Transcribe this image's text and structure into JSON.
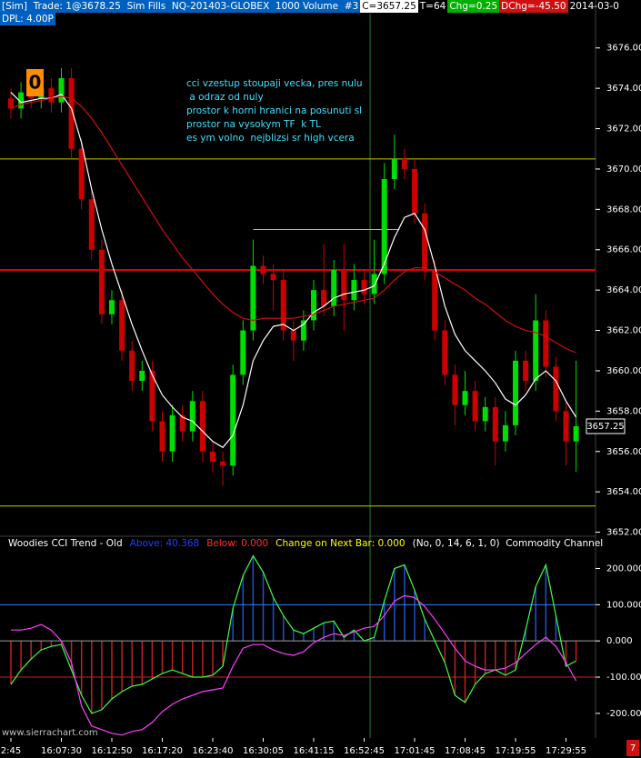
{
  "header": {
    "trade": "[Sim]  Trade: 1@3678.25  Sim Fills  NQ-201403-GLOBEX  1000 Volume  #3",
    "close": "C=3657.25",
    "ticks": "T=64",
    "chg": "Chg=0.25",
    "dchg": "DChg=-45.50",
    "date": "2014-03-0",
    "dpl": "DPL: 4.00P"
  },
  "watermark": "www.sierrachart.com",
  "badge": "7",
  "chart_data": [
    {
      "type": "candlestick",
      "marker_label": "0",
      "annotation": [
        "cci vzestup stoupaji vecka, pres nulu",
        " a odraz od nuly",
        "prostor k horni hranici na posunuti sl",
        "prostor na vysokym TF  k TL",
        "es ym volno  nejblizsi sr high vcera"
      ],
      "categories": [
        "2:45",
        null,
        null,
        null,
        null,
        "16:07:30",
        null,
        null,
        null,
        null,
        "16:12:50",
        null,
        null,
        null,
        null,
        "16:17:20",
        null,
        null,
        null,
        null,
        "16:23:40",
        null,
        null,
        null,
        null,
        "16:30:05",
        null,
        null,
        null,
        null,
        "16:41:15",
        null,
        null,
        null,
        null,
        "16:52:45",
        null,
        null,
        null,
        null,
        "17:01:45",
        null,
        null,
        null,
        null,
        "17:08:45",
        null,
        null,
        null,
        null,
        "17:19:55",
        null,
        null,
        null,
        null,
        "17:29:55",
        null
      ],
      "open": [
        3673.5,
        3673.0,
        3673.8,
        3673.5,
        3674.0,
        3673.3,
        3674.5,
        3671.0,
        3668.5,
        3666.0,
        3662.8,
        3663.5,
        3661.0,
        3659.5,
        3660.0,
        3657.5,
        3656.0,
        3657.8,
        3657.0,
        3658.5,
        3656.0,
        3655.5,
        3655.3,
        3659.8,
        3662.0,
        3665.2,
        3664.8,
        3664.5,
        3662.0,
        3661.5,
        3662.5,
        3664.0,
        3663.2,
        3665.0,
        3663.5,
        3664.5,
        3663.8,
        3664.8,
        3669.5,
        3670.5,
        3670.0,
        3667.8,
        3665.0,
        3662.0,
        3659.8,
        3658.3,
        3659.0,
        3657.5,
        3658.2,
        3656.5,
        3657.3,
        3660.5,
        3659.5,
        3662.5,
        3660.2,
        3658.0,
        3656.5
      ],
      "high": [
        3674.0,
        3674.3,
        3674.3,
        3674.5,
        3674.5,
        3675.0,
        3675.0,
        3671.5,
        3669.0,
        3666.5,
        3664.0,
        3664.0,
        3661.5,
        3660.5,
        3660.5,
        3658.0,
        3658.3,
        3658.3,
        3659.0,
        3659.0,
        3656.5,
        3656.0,
        3660.3,
        3662.5,
        3666.5,
        3665.7,
        3665.3,
        3665.0,
        3662.5,
        3663.0,
        3664.5,
        3666.3,
        3665.5,
        3666.3,
        3665.3,
        3665.0,
        3666.5,
        3670.3,
        3671.7,
        3671.0,
        3670.5,
        3668.3,
        3665.5,
        3662.5,
        3660.3,
        3660.0,
        3659.5,
        3658.7,
        3658.7,
        3658.0,
        3661.0,
        3661.0,
        3663.8,
        3663.0,
        3660.7,
        3658.5,
        3660.5
      ],
      "low": [
        3672.5,
        3672.5,
        3673.0,
        3673.0,
        3672.8,
        3672.8,
        3670.5,
        3668.0,
        3665.5,
        3662.3,
        3662.3,
        3660.5,
        3659.0,
        3659.0,
        3657.0,
        3655.5,
        3655.5,
        3656.5,
        3656.5,
        3655.5,
        3655.0,
        3654.3,
        3654.8,
        3659.3,
        3661.5,
        3664.3,
        3663.0,
        3661.5,
        3660.5,
        3661.0,
        3662.0,
        3662.7,
        3662.7,
        3662.0,
        3663.0,
        3663.3,
        3663.3,
        3664.3,
        3669.0,
        3669.5,
        3667.3,
        3664.5,
        3661.5,
        3659.3,
        3657.3,
        3657.8,
        3657.0,
        3657.0,
        3655.3,
        3656.0,
        3656.8,
        3659.0,
        3659.0,
        3659.7,
        3657.5,
        3655.3,
        3655.0
      ],
      "close": [
        3673.0,
        3673.8,
        3673.5,
        3674.0,
        3673.3,
        3674.5,
        3671.0,
        3668.5,
        3666.0,
        3662.8,
        3663.5,
        3661.0,
        3659.5,
        3660.0,
        3657.5,
        3656.0,
        3657.8,
        3657.0,
        3658.5,
        3656.0,
        3655.5,
        3655.3,
        3659.8,
        3662.0,
        3665.2,
        3664.8,
        3664.5,
        3662.0,
        3661.5,
        3662.5,
        3664.0,
        3663.2,
        3665.0,
        3663.5,
        3664.5,
        3663.8,
        3664.8,
        3669.5,
        3670.5,
        3670.0,
        3667.8,
        3665.0,
        3662.0,
        3659.8,
        3658.3,
        3659.0,
        3657.5,
        3658.2,
        3656.5,
        3657.3,
        3660.5,
        3659.5,
        3662.5,
        3660.2,
        3658.0,
        3656.5,
        3657.25
      ],
      "up_color": "#00dd00",
      "down_color": "#cc0000",
      "overlays": [
        {
          "color": "#ffffff",
          "values": [
            3673.8,
            3673.3,
            3673.4,
            3673.5,
            3673.5,
            3673.7,
            3673.0,
            3671.3,
            3669.0,
            3667.0,
            3665.3,
            3663.8,
            3662.3,
            3661.0,
            3659.8,
            3658.8,
            3658.2,
            3657.7,
            3657.5,
            3657.0,
            3656.5,
            3656.2,
            3656.8,
            3658.3,
            3660.5,
            3661.5,
            3662.2,
            3662.3,
            3662.0,
            3662.3,
            3662.9,
            3663.2,
            3663.6,
            3663.8,
            3663.9,
            3664.0,
            3664.2,
            3665.3,
            3666.6,
            3667.6,
            3667.8,
            3667.0,
            3665.2,
            3663.2,
            3661.8,
            3661.0,
            3660.5,
            3660.0,
            3659.4,
            3658.6,
            3658.3,
            3658.8,
            3659.6,
            3660.0,
            3659.5,
            3658.5,
            3657.7
          ]
        },
        {
          "color": "#d01010",
          "values": [
            3673.0,
            3673.2,
            3673.3,
            3673.4,
            3673.5,
            3673.6,
            3673.5,
            3673.1,
            3672.5,
            3671.8,
            3671.0,
            3670.2,
            3669.4,
            3668.6,
            3667.8,
            3667.0,
            3666.3,
            3665.6,
            3665.0,
            3664.4,
            3663.8,
            3663.3,
            3662.9,
            3662.6,
            3662.5,
            3662.6,
            3662.6,
            3662.6,
            3662.6,
            3662.7,
            3662.8,
            3663.0,
            3663.2,
            3663.3,
            3663.4,
            3663.5,
            3663.6,
            3664.0,
            3664.5,
            3664.9,
            3665.1,
            3665.1,
            3664.9,
            3664.6,
            3664.3,
            3664.0,
            3663.6,
            3663.3,
            3662.9,
            3662.5,
            3662.2,
            3662.0,
            3661.9,
            3661.7,
            3661.4,
            3661.1,
            3660.9
          ]
        }
      ],
      "levels": [
        {
          "value": 3670.5,
          "color": "#c8c800",
          "width": 1
        },
        {
          "value": 3665,
          "color": "#e00000",
          "width": 2
        },
        {
          "value": 3653.3,
          "color": "#c8c800",
          "width": 1
        }
      ],
      "segment_level": {
        "value": 3667,
        "color": "#c8c800"
      },
      "ylim": [
        3651.8,
        3677.7
      ],
      "yticks": [
        {
          "value": 3652,
          "label": "3652.00"
        },
        {
          "value": 3654,
          "label": "3654.00"
        },
        {
          "value": 3656,
          "label": "3656.00"
        },
        {
          "value": 3658,
          "label": "3658.00"
        },
        {
          "value": 3660,
          "label": "3660.00"
        },
        {
          "value": 3662,
          "label": "3662.00"
        },
        {
          "value": 3664,
          "label": "3664.00"
        },
        {
          "value": 3666,
          "label": "3666.00"
        },
        {
          "value": 3668,
          "label": "3668.00"
        },
        {
          "value": 3670,
          "label": "3670.00"
        },
        {
          "value": 3672,
          "label": "3672.00"
        },
        {
          "value": 3674,
          "label": "3674.00"
        },
        {
          "value": 3676,
          "label": "3676.00"
        }
      ]
    },
    {
      "type": "line",
      "title": "Woodies CCI Trend - Old",
      "above": "Above: 40.368",
      "below": "Below: 0.000",
      "change": "Change on Next Bar: 0.000",
      "params": "(No, 0, 14, 6, 1, 0)  Commodity Channel",
      "series": [
        {
          "color": "#40ff40",
          "values": [
            -120,
            -80,
            -50,
            -25,
            -15,
            -10,
            -80,
            -150,
            -200,
            -190,
            -160,
            -140,
            -125,
            -120,
            -105,
            -90,
            -80,
            -90,
            -100,
            -100,
            -95,
            -70,
            90,
            180,
            235,
            190,
            120,
            70,
            30,
            20,
            35,
            50,
            55,
            10,
            30,
            0,
            10,
            110,
            200,
            210,
            140,
            60,
            0,
            -60,
            -150,
            -170,
            -120,
            -90,
            -80,
            -95,
            -80,
            30,
            150,
            210,
            70,
            -70,
            -55
          ],
          "hist_pos_color": "#2050d0",
          "hist_neg_color": "#c02020"
        },
        {
          "color": "#ff40ff",
          "values": [
            30,
            30,
            35,
            45,
            30,
            0,
            -60,
            -180,
            -235,
            -245,
            -255,
            -260,
            -250,
            -245,
            -225,
            -195,
            -175,
            -160,
            -150,
            -140,
            -135,
            -130,
            -70,
            -20,
            -10,
            -10,
            -25,
            -35,
            -40,
            -30,
            -5,
            10,
            20,
            15,
            25,
            35,
            40,
            70,
            110,
            125,
            120,
            95,
            60,
            20,
            -20,
            -55,
            -70,
            -80,
            -80,
            -75,
            -60,
            -35,
            -10,
            10,
            -15,
            -60,
            -110
          ]
        }
      ],
      "levels": [
        {
          "value": 100,
          "color": "#3080ff",
          "width": 1
        },
        {
          "value": 0,
          "color": "#a0a0a0",
          "width": 1
        },
        {
          "value": -100,
          "color": "#d02020",
          "width": 1
        }
      ],
      "ylim": [
        -268,
        289
      ],
      "yticks": [
        {
          "value": 200,
          "label": "200.000"
        },
        {
          "value": 100,
          "label": "100.000"
        },
        {
          "value": 0,
          "label": "0.000"
        },
        {
          "value": -100,
          "label": "-100.000"
        },
        {
          "value": -200,
          "label": "-200.000"
        }
      ]
    }
  ]
}
